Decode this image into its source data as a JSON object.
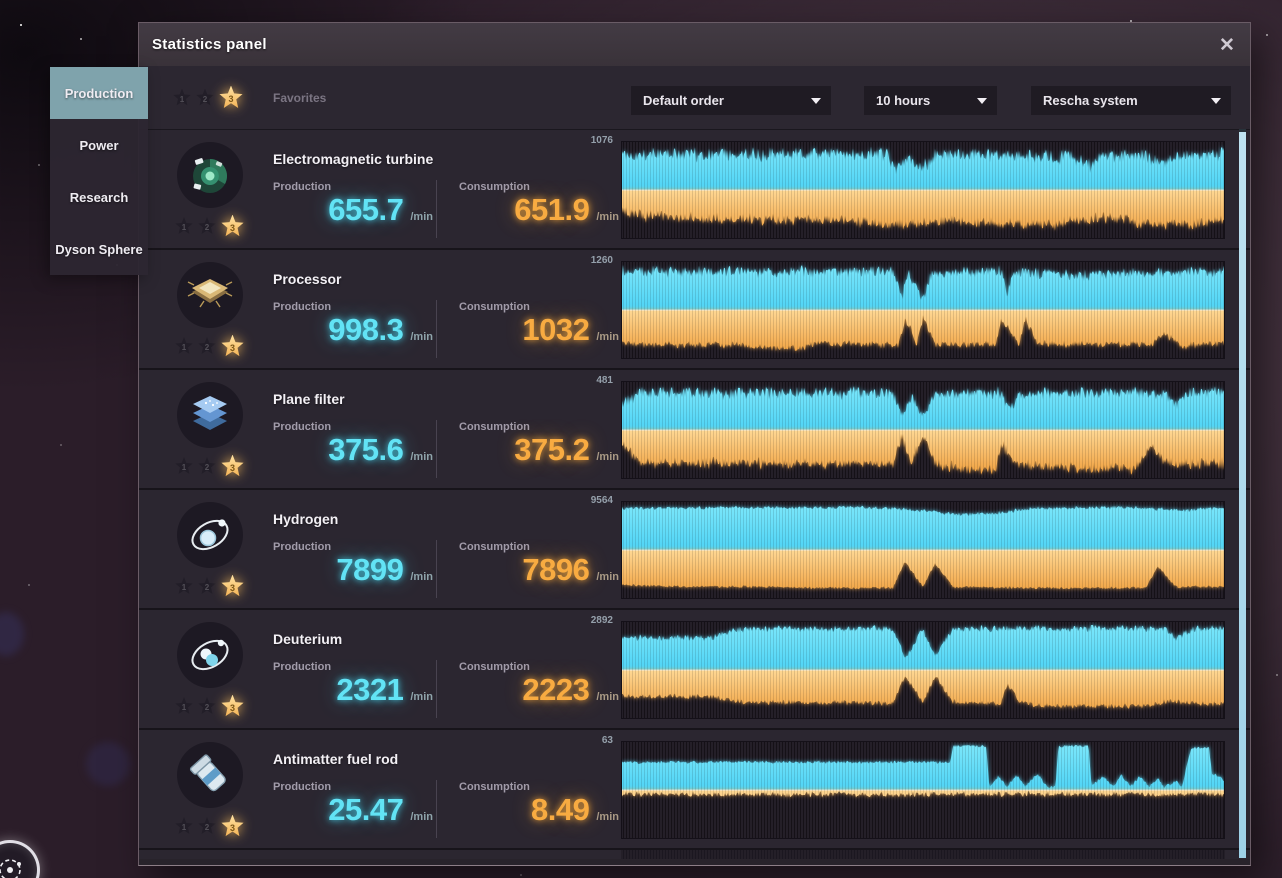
{
  "window": {
    "title": "Statistics panel",
    "close_glyph": "✕"
  },
  "sidebar": {
    "tabs": [
      {
        "label": "Production",
        "active": true
      },
      {
        "label": "Power",
        "active": false
      },
      {
        "label": "Research",
        "active": false
      },
      {
        "label": "Dyson Sphere",
        "active": false
      }
    ]
  },
  "filters": {
    "favorites_label": "Favorites",
    "star_levels": [
      "1",
      "2",
      "3"
    ],
    "active_star_index": 2,
    "dropdowns": [
      {
        "name": "sort-order",
        "value": "Default order"
      },
      {
        "name": "time-range",
        "value": "10 hours"
      },
      {
        "name": "star-system",
        "value": "Rescha system"
      }
    ]
  },
  "labels": {
    "production": "Production",
    "consumption": "Consumption",
    "unit": "/min"
  },
  "items": [
    {
      "name": "Electromagnetic turbine",
      "icon": "turbine",
      "production_value": "655.7",
      "consumption_value": "651.9",
      "chart_max": "1076"
    },
    {
      "name": "Processor",
      "icon": "processor",
      "production_value": "998.3",
      "consumption_value": "1032",
      "chart_max": "1260"
    },
    {
      "name": "Plane filter",
      "icon": "plane-filter",
      "production_value": "375.6",
      "consumption_value": "375.2",
      "chart_max": "481"
    },
    {
      "name": "Hydrogen",
      "icon": "hydrogen",
      "production_value": "7899",
      "consumption_value": "7896",
      "chart_max": "9564"
    },
    {
      "name": "Deuterium",
      "icon": "deuterium",
      "production_value": "2321",
      "consumption_value": "2223",
      "chart_max": "2892"
    },
    {
      "name": "Antimatter fuel rod",
      "icon": "fuel-rod",
      "production_value": "25.47",
      "consumption_value": "8.49",
      "chart_max": "63"
    }
  ],
  "colors": {
    "production_accent": "#55d8f7",
    "consumption_accent": "#f5a63f",
    "active_tab": "#7fa3ac",
    "gold_star": "#f7c565",
    "scrollbar": "#a5d8ec"
  },
  "chart_data": [
    {
      "type": "area",
      "item": "Electromagnetic turbine",
      "x_range": "10 hours",
      "ylim": [
        0,
        1076
      ],
      "unit": "/min",
      "layout": "mirrored-center-baseline",
      "series": [
        {
          "name": "Production",
          "color": "#4fd4f6",
          "color2": "#7ee8fb",
          "glow": "rgba(86,218,248,0.85)",
          "noise": 300,
          "breakpoints": [
            [
              0,
              900
            ],
            [
              0.05,
              930
            ],
            [
              0.44,
              930
            ],
            [
              0.455,
              520
            ],
            [
              0.47,
              880
            ],
            [
              0.5,
              600
            ],
            [
              0.52,
              900
            ],
            [
              0.55,
              930
            ],
            [
              0.6,
              900
            ],
            [
              0.75,
              870
            ],
            [
              0.78,
              640
            ],
            [
              0.8,
              880
            ],
            [
              0.87,
              900
            ],
            [
              0.9,
              700
            ],
            [
              0.93,
              920
            ],
            [
              1,
              930
            ]
          ]
        },
        {
          "name": "Consumption",
          "color": "#ef9c38",
          "color2": "#ffd894",
          "glow": "rgba(246,170,70,0.85)",
          "noise": 260,
          "breakpoints": [
            [
              0,
              560
            ],
            [
              0.04,
              700
            ],
            [
              0.1,
              740
            ],
            [
              0.2,
              760
            ],
            [
              0.28,
              800
            ],
            [
              0.35,
              760
            ],
            [
              0.44,
              900
            ],
            [
              0.5,
              880
            ],
            [
              0.55,
              760
            ],
            [
              0.62,
              900
            ],
            [
              0.72,
              880
            ],
            [
              0.78,
              740
            ],
            [
              0.83,
              760
            ],
            [
              0.88,
              930
            ],
            [
              0.93,
              900
            ],
            [
              1,
              800
            ]
          ]
        }
      ]
    },
    {
      "type": "area",
      "item": "Processor",
      "x_range": "10 hours",
      "ylim": [
        0,
        1260
      ],
      "unit": "/min",
      "layout": "mirrored-center-baseline",
      "series": [
        {
          "name": "Production",
          "color": "#4fd4f6",
          "color2": "#7ee8fb",
          "glow": "rgba(86,218,248,0.85)",
          "noise": 280,
          "breakpoints": [
            [
              0,
              1150
            ],
            [
              0.45,
              1150
            ],
            [
              0.465,
              420
            ],
            [
              0.475,
              1100
            ],
            [
              0.5,
              380
            ],
            [
              0.515,
              1120
            ],
            [
              0.63,
              1150
            ],
            [
              0.64,
              520
            ],
            [
              0.65,
              1120
            ],
            [
              0.75,
              1050
            ],
            [
              0.85,
              1100
            ],
            [
              1,
              1150
            ]
          ]
        },
        {
          "name": "Consumption",
          "color": "#ef9c38",
          "color2": "#ffd894",
          "glow": "rgba(246,170,70,0.85)",
          "noise": 180,
          "breakpoints": [
            [
              0,
              980
            ],
            [
              0.05,
              1020
            ],
            [
              0.2,
              1030
            ],
            [
              0.24,
              1120
            ],
            [
              0.3,
              1120
            ],
            [
              0.32,
              1000
            ],
            [
              0.46,
              1030
            ],
            [
              0.47,
              250
            ],
            [
              0.49,
              1000
            ],
            [
              0.5,
              250
            ],
            [
              0.52,
              1000
            ],
            [
              0.62,
              1020
            ],
            [
              0.63,
              300
            ],
            [
              0.66,
              980
            ],
            [
              0.67,
              300
            ],
            [
              0.69,
              1000
            ],
            [
              0.88,
              1020
            ],
            [
              0.9,
              700
            ],
            [
              0.93,
              1050
            ],
            [
              1,
              1000
            ]
          ]
        }
      ]
    },
    {
      "type": "area",
      "item": "Plane filter",
      "x_range": "10 hours",
      "ylim": [
        0,
        481
      ],
      "unit": "/min",
      "layout": "mirrored-center-baseline",
      "series": [
        {
          "name": "Production",
          "color": "#4fd4f6",
          "color2": "#7ee8fb",
          "glow": "rgba(86,218,248,0.85)",
          "noise": 120,
          "breakpoints": [
            [
              0,
              300
            ],
            [
              0.03,
              430
            ],
            [
              0.45,
              430
            ],
            [
              0.465,
              160
            ],
            [
              0.48,
              400
            ],
            [
              0.5,
              170
            ],
            [
              0.52,
              420
            ],
            [
              0.63,
              430
            ],
            [
              0.645,
              230
            ],
            [
              0.66,
              420
            ],
            [
              0.9,
              430
            ],
            [
              0.92,
              300
            ],
            [
              0.94,
              430
            ],
            [
              1,
              430
            ]
          ]
        },
        {
          "name": "Consumption",
          "color": "#ef9c38",
          "color2": "#ffd894",
          "glow": "rgba(246,170,70,0.85)",
          "noise": 110,
          "breakpoints": [
            [
              0,
              180
            ],
            [
              0.03,
              380
            ],
            [
              0.45,
              390
            ],
            [
              0.465,
              90
            ],
            [
              0.48,
              370
            ],
            [
              0.5,
              100
            ],
            [
              0.52,
              380
            ],
            [
              0.56,
              450
            ],
            [
              0.62,
              450
            ],
            [
              0.63,
              160
            ],
            [
              0.65,
              380
            ],
            [
              0.72,
              440
            ],
            [
              0.85,
              440
            ],
            [
              0.88,
              200
            ],
            [
              0.9,
              380
            ],
            [
              1,
              390
            ]
          ]
        }
      ]
    },
    {
      "type": "area",
      "item": "Hydrogen",
      "x_range": "10 hours",
      "ylim": [
        0,
        9564
      ],
      "unit": "/min",
      "layout": "mirrored-center-baseline",
      "series": [
        {
          "name": "Production",
          "color": "#4fd4f6",
          "color2": "#7ee8fb",
          "glow": "rgba(86,218,248,0.85)",
          "noise": 700,
          "breakpoints": [
            [
              0,
              9100
            ],
            [
              0.4,
              9250
            ],
            [
              0.5,
              8600
            ],
            [
              0.55,
              7800
            ],
            [
              0.62,
              8000
            ],
            [
              0.68,
              9000
            ],
            [
              0.85,
              9250
            ],
            [
              0.93,
              8600
            ],
            [
              1,
              9100
            ]
          ]
        },
        {
          "name": "Consumption",
          "color": "#ef9c38",
          "color2": "#ffd894",
          "glow": "rgba(246,170,70,0.85)",
          "noise": 500,
          "breakpoints": [
            [
              0,
              7600
            ],
            [
              0.1,
              7900
            ],
            [
              0.25,
              8000
            ],
            [
              0.3,
              8200
            ],
            [
              0.45,
              8200
            ],
            [
              0.47,
              2600
            ],
            [
              0.5,
              8000
            ],
            [
              0.52,
              3000
            ],
            [
              0.55,
              8000
            ],
            [
              0.7,
              8200
            ],
            [
              0.87,
              8200
            ],
            [
              0.89,
              3600
            ],
            [
              0.92,
              8000
            ],
            [
              1,
              7900
            ]
          ]
        }
      ]
    },
    {
      "type": "area",
      "item": "Deuterium",
      "x_range": "10 hours",
      "ylim": [
        0,
        2892
      ],
      "unit": "/min",
      "layout": "mirrored-center-baseline",
      "series": [
        {
          "name": "Production",
          "color": "#4fd4f6",
          "color2": "#7ee8fb",
          "glow": "rgba(86,218,248,0.85)",
          "noise": 380,
          "breakpoints": [
            [
              0,
              2150
            ],
            [
              0.15,
              2200
            ],
            [
              0.2,
              2750
            ],
            [
              0.45,
              2780
            ],
            [
              0.47,
              900
            ],
            [
              0.5,
              2700
            ],
            [
              0.52,
              1000
            ],
            [
              0.55,
              2750
            ],
            [
              0.9,
              2780
            ],
            [
              0.92,
              2200
            ],
            [
              0.95,
              2750
            ],
            [
              1,
              2780
            ]
          ]
        },
        {
          "name": "Consumption",
          "color": "#ef9c38",
          "color2": "#ffd894",
          "glow": "rgba(246,170,70,0.85)",
          "noise": 300,
          "breakpoints": [
            [
              0,
              1750
            ],
            [
              0.15,
              1800
            ],
            [
              0.2,
              2150
            ],
            [
              0.45,
              2200
            ],
            [
              0.47,
              450
            ],
            [
              0.5,
              2100
            ],
            [
              0.52,
              500
            ],
            [
              0.55,
              2150
            ],
            [
              0.63,
              2200
            ],
            [
              0.64,
              900
            ],
            [
              0.66,
              2150
            ],
            [
              0.7,
              2400
            ],
            [
              0.88,
              2400
            ],
            [
              0.9,
              2100
            ],
            [
              1,
              2300
            ]
          ]
        }
      ]
    },
    {
      "type": "area",
      "item": "Antimatter fuel rod",
      "x_range": "10 hours",
      "ylim": [
        0,
        63
      ],
      "unit": "/min",
      "layout": "mirrored-center-baseline",
      "series": [
        {
          "name": "Production",
          "color": "#4fd4f6",
          "color2": "#7ee8fb",
          "glow": "rgba(86,218,248,0.85)",
          "noise": 4,
          "breakpoints": [
            [
              0,
              40
            ],
            [
              0.545,
              40
            ],
            [
              0.55,
              63
            ],
            [
              0.605,
              63
            ],
            [
              0.61,
              6
            ],
            [
              0.625,
              20
            ],
            [
              0.64,
              6
            ],
            [
              0.655,
              22
            ],
            [
              0.67,
              6
            ],
            [
              0.69,
              24
            ],
            [
              0.705,
              6
            ],
            [
              0.72,
              6
            ],
            [
              0.725,
              63
            ],
            [
              0.775,
              63
            ],
            [
              0.78,
              8
            ],
            [
              0.8,
              20
            ],
            [
              0.815,
              6
            ],
            [
              0.83,
              22
            ],
            [
              0.845,
              6
            ],
            [
              0.86,
              20
            ],
            [
              0.875,
              6
            ],
            [
              0.89,
              18
            ],
            [
              0.9,
              5
            ],
            [
              0.92,
              14
            ],
            [
              0.93,
              5
            ],
            [
              0.945,
              60
            ],
            [
              0.975,
              60
            ],
            [
              0.98,
              25
            ],
            [
              1,
              15
            ]
          ]
        },
        {
          "name": "Consumption",
          "color": "#ef9c38",
          "color2": "#ffd894",
          "glow": "rgba(246,170,70,0.85)",
          "noise": 7,
          "breakpoints": [
            [
              0,
              8
            ],
            [
              1,
              8
            ]
          ]
        }
      ]
    }
  ]
}
